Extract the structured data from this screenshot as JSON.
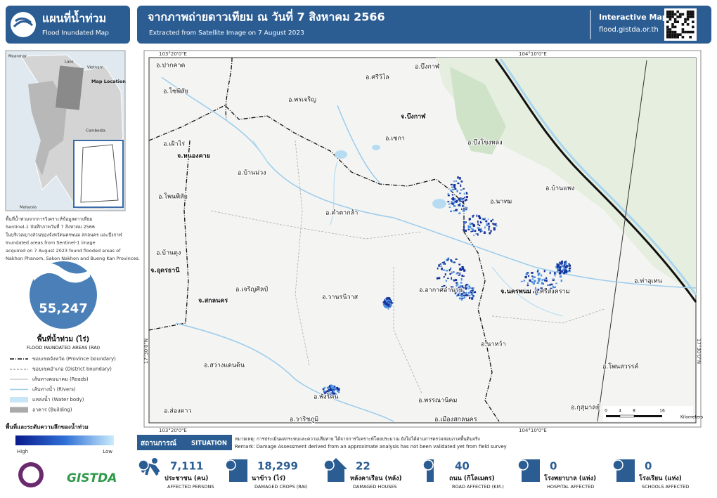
{
  "header": {
    "title_th": "แผนที่น้ำท่วม",
    "title_en": "Flood Inundated Map",
    "main_title": "จากภาพถ่ายดาวเทียม ณ วันที่ 7 สิงหาคม 2566",
    "subtitle": "Extracted from Satellite Image on 7 August 2023",
    "interactive": "Interactive Map",
    "url": "flood.gistda.or.th"
  },
  "inset": {
    "labels": [
      "Myanmar",
      "Laos",
      "Vietnam",
      "Map Location",
      "Cambodia",
      "Malaysia"
    ]
  },
  "description": [
    "พื้นที่น้ำท่วมจากการวิเคราะห์ข้อมูลดาวเทียม",
    "Sentinel-1 บันทึกภาพวันที่ 7 สิงหาคม 2566",
    "ในบริเวณบางส่วนของจังหวัดนครพนม สกลนคร และบึงกาฬ",
    "Inundated areas from Sentinel-1 image",
    "acquired on 7 August 2023 found flooded areas of",
    "Nakhon Phanom, Sakon Nakhon and Bueng Kan Provinces."
  ],
  "flood_area": {
    "value": "55,247",
    "label_th": "พื้นที่น้ำท่วม (ไร่)",
    "label_en": "FLOOD INUNDATED AREAS (RAI)"
  },
  "legend": [
    "ขอบเขตจังหวัด (Province boundary)",
    "ขอบเขตอำเภอ (District boundary)",
    "เส้นทางคมนาคม (Roads)",
    "เส้นทางน้ำ (Rivers)",
    "แหล่งน้ำ (Water body)",
    "อาคาร (Building)"
  ],
  "depth_legend": {
    "title": "พื้นที่และระดับความลึกของน้ำท่วม",
    "high": "High",
    "low": "Low"
  },
  "logo_text": "GISTDA",
  "map": {
    "coords": {
      "west": "103°20'0\"E",
      "east": "104°10'0\"E",
      "lat": "17°30'0\"N"
    },
    "labels": [
      "อ.ปากคาด",
      "อ.ศรีวิไล",
      "อ.บึงกาฬ",
      "อ.โซ่พิสัย",
      "อ.พรเจริญ",
      "จ.บึงกาฬ",
      "อ.เซกา",
      "อ.บึงโขงหลง",
      "อ.เฝ้าไร่",
      "จ.หนองคาย",
      "อ.บ้านม่วง",
      "อ.โพนพิสัย",
      "อ.คำตากล้า",
      "อ.นาทม",
      "อ.บ้านแพง",
      "อ.บ้านดุง",
      "จ.อุดรธานี",
      "อ.เจริญศิลป์",
      "อ.วานรนิวาส",
      "อ.อากาศอำนวย",
      "จ.นครพนม",
      "อ.ศรีสงคราม",
      "อ.ท่าอุเทน",
      "จ.สกลนคร",
      "อ.นาหว้า",
      "อ.สว่างแดนดิน",
      "อ.โพนสวรรค์",
      "อ.พังโคน",
      "อ.พรรณานิคม",
      "อ.กุสุมาลย์",
      "อ.ส่องดาว",
      "อ.วาริชภูมิ",
      "อ.เมืองสกลนคร"
    ],
    "scale": [
      "0",
      "4",
      "8",
      "16",
      "Kilometers"
    ]
  },
  "situation": {
    "title_th": "สถานการณ์",
    "title_en": "SITUATION",
    "remark_th": "หมายเหตุ: การประเมินผลกระทบและความเสียหาย ได้จากการวิเคราะห์โดยประมาณ ยังไม่ได้ผ่านการตรวจสอบภาคพื้นดินจริง",
    "remark_en": "Remark: Damage Assessment derived from an approximate analysis has not been validated yet from field survey"
  },
  "impacts": [
    {
      "value": "7,111",
      "label_th": "ประชาชน (คน)",
      "label_en": "AFFECTED PERSONS"
    },
    {
      "value": "18,299",
      "label_th": "นาข้าว (ไร่)",
      "label_en": "DAMAGED CROPS (RAI)"
    },
    {
      "value": "22",
      "label_th": "หลังคาเรือน (หลัง)",
      "label_en": "DAMAGED HOUSES"
    },
    {
      "value": "40",
      "label_th": "ถนน (กิโลเมตร)",
      "label_en": "ROAD AFFECTED (KM.)"
    },
    {
      "value": "0",
      "label_th": "โรงพยาบาล (แห่ง)",
      "label_en": "HOSPITAL AFFECTED"
    },
    {
      "value": "0",
      "label_th": "โรงเรียน (แห่ง)",
      "label_en": "SCHOOLS AFFECTED"
    }
  ]
}
